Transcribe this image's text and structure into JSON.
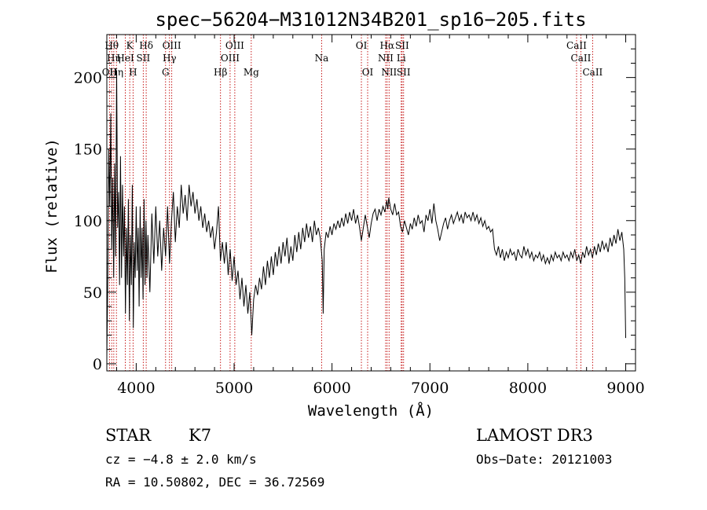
{
  "chart_data": {
    "type": "line",
    "title": "spec−56204−M31012N34B201_sp16−205.fits",
    "xlabel": "Wavelength (Å)",
    "ylabel": "Flux (relative)",
    "xlim": [
      3700,
      9100
    ],
    "ylim": [
      -5,
      230
    ],
    "xticks": [
      4000,
      5000,
      6000,
      7000,
      8000,
      9000
    ],
    "yticks": [
      0,
      50,
      100,
      150,
      200
    ],
    "spectrum": [
      [
        3700,
        5
      ],
      [
        3710,
        60
      ],
      [
        3720,
        150
      ],
      [
        3730,
        110
      ],
      [
        3740,
        175
      ],
      [
        3750,
        80
      ],
      [
        3760,
        130
      ],
      [
        3770,
        60
      ],
      [
        3780,
        140
      ],
      [
        3790,
        75
      ],
      [
        3800,
        205
      ],
      [
        3810,
        95
      ],
      [
        3820,
        120
      ],
      [
        3830,
        55
      ],
      [
        3840,
        145
      ],
      [
        3850,
        60
      ],
      [
        3860,
        125
      ],
      [
        3870,
        75
      ],
      [
        3880,
        110
      ],
      [
        3890,
        35
      ],
      [
        3900,
        95
      ],
      [
        3910,
        55
      ],
      [
        3920,
        115
      ],
      [
        3930,
        30
      ],
      [
        3940,
        90
      ],
      [
        3950,
        55
      ],
      [
        3960,
        125
      ],
      [
        3970,
        25
      ],
      [
        3980,
        85
      ],
      [
        3990,
        60
      ],
      [
        4000,
        110
      ],
      [
        4010,
        65
      ],
      [
        4020,
        95
      ],
      [
        4030,
        40
      ],
      [
        4040,
        110
      ],
      [
        4050,
        60
      ],
      [
        4060,
        95
      ],
      [
        4070,
        45
      ],
      [
        4080,
        115
      ],
      [
        4090,
        55
      ],
      [
        4100,
        100
      ],
      [
        4110,
        60
      ],
      [
        4120,
        90
      ],
      [
        4140,
        50
      ],
      [
        4160,
        105
      ],
      [
        4180,
        70
      ],
      [
        4200,
        110
      ],
      [
        4220,
        75
      ],
      [
        4240,
        100
      ],
      [
        4260,
        65
      ],
      [
        4280,
        95
      ],
      [
        4300,
        75
      ],
      [
        4320,
        110
      ],
      [
        4340,
        70
      ],
      [
        4360,
        100
      ],
      [
        4380,
        120
      ],
      [
        4400,
        85
      ],
      [
        4420,
        110
      ],
      [
        4440,
        95
      ],
      [
        4460,
        125
      ],
      [
        4480,
        105
      ],
      [
        4500,
        118
      ],
      [
        4520,
        100
      ],
      [
        4540,
        125
      ],
      [
        4560,
        110
      ],
      [
        4580,
        120
      ],
      [
        4600,
        105
      ],
      [
        4620,
        115
      ],
      [
        4640,
        100
      ],
      [
        4660,
        110
      ],
      [
        4680,
        95
      ],
      [
        4700,
        105
      ],
      [
        4720,
        92
      ],
      [
        4740,
        100
      ],
      [
        4760,
        88
      ],
      [
        4780,
        96
      ],
      [
        4800,
        80
      ],
      [
        4820,
        92
      ],
      [
        4840,
        110
      ],
      [
        4860,
        72
      ],
      [
        4880,
        85
      ],
      [
        4900,
        70
      ],
      [
        4920,
        85
      ],
      [
        4940,
        62
      ],
      [
        4960,
        80
      ],
      [
        4980,
        58
      ],
      [
        5000,
        75
      ],
      [
        5020,
        55
      ],
      [
        5040,
        65
      ],
      [
        5060,
        45
      ],
      [
        5080,
        60
      ],
      [
        5100,
        40
      ],
      [
        5120,
        55
      ],
      [
        5140,
        35
      ],
      [
        5160,
        50
      ],
      [
        5180,
        20
      ],
      [
        5200,
        45
      ],
      [
        5220,
        55
      ],
      [
        5240,
        48
      ],
      [
        5260,
        60
      ],
      [
        5280,
        52
      ],
      [
        5300,
        68
      ],
      [
        5320,
        55
      ],
      [
        5340,
        72
      ],
      [
        5360,
        60
      ],
      [
        5380,
        75
      ],
      [
        5400,
        62
      ],
      [
        5420,
        78
      ],
      [
        5440,
        68
      ],
      [
        5460,
        82
      ],
      [
        5480,
        70
      ],
      [
        5500,
        85
      ],
      [
        5520,
        75
      ],
      [
        5540,
        88
      ],
      [
        5560,
        70
      ],
      [
        5580,
        82
      ],
      [
        5600,
        72
      ],
      [
        5620,
        90
      ],
      [
        5640,
        78
      ],
      [
        5660,
        92
      ],
      [
        5680,
        80
      ],
      [
        5700,
        95
      ],
      [
        5720,
        85
      ],
      [
        5740,
        98
      ],
      [
        5760,
        88
      ],
      [
        5780,
        96
      ],
      [
        5800,
        85
      ],
      [
        5820,
        100
      ],
      [
        5840,
        90
      ],
      [
        5860,
        95
      ],
      [
        5880,
        88
      ],
      [
        5900,
        72
      ],
      [
        5910,
        35
      ],
      [
        5920,
        80
      ],
      [
        5940,
        92
      ],
      [
        5960,
        88
      ],
      [
        5980,
        96
      ],
      [
        6000,
        90
      ],
      [
        6020,
        98
      ],
      [
        6040,
        94
      ],
      [
        6060,
        100
      ],
      [
        6080,
        95
      ],
      [
        6100,
        102
      ],
      [
        6120,
        96
      ],
      [
        6140,
        105
      ],
      [
        6160,
        98
      ],
      [
        6180,
        106
      ],
      [
        6200,
        100
      ],
      [
        6220,
        108
      ],
      [
        6240,
        98
      ],
      [
        6260,
        104
      ],
      [
        6280,
        96
      ],
      [
        6300,
        86
      ],
      [
        6320,
        95
      ],
      [
        6340,
        104
      ],
      [
        6360,
        96
      ],
      [
        6380,
        88
      ],
      [
        6400,
        98
      ],
      [
        6420,
        105
      ],
      [
        6440,
        108
      ],
      [
        6460,
        100
      ],
      [
        6480,
        108
      ],
      [
        6500,
        104
      ],
      [
        6520,
        110
      ],
      [
        6540,
        106
      ],
      [
        6560,
        114
      ],
      [
        6570,
        108
      ],
      [
        6580,
        116
      ],
      [
        6600,
        108
      ],
      [
        6620,
        104
      ],
      [
        6640,
        112
      ],
      [
        6660,
        104
      ],
      [
        6680,
        106
      ],
      [
        6700,
        96
      ],
      [
        6720,
        92
      ],
      [
        6740,
        100
      ],
      [
        6760,
        95
      ],
      [
        6780,
        90
      ],
      [
        6800,
        98
      ],
      [
        6820,
        94
      ],
      [
        6840,
        102
      ],
      [
        6860,
        96
      ],
      [
        6880,
        104
      ],
      [
        6900,
        98
      ],
      [
        6920,
        100
      ],
      [
        6940,
        92
      ],
      [
        6960,
        104
      ],
      [
        6980,
        100
      ],
      [
        7000,
        108
      ],
      [
        7020,
        98
      ],
      [
        7040,
        112
      ],
      [
        7060,
        100
      ],
      [
        7080,
        94
      ],
      [
        7100,
        86
      ],
      [
        7120,
        92
      ],
      [
        7140,
        98
      ],
      [
        7160,
        102
      ],
      [
        7180,
        94
      ],
      [
        7200,
        100
      ],
      [
        7220,
        104
      ],
      [
        7240,
        98
      ],
      [
        7260,
        102
      ],
      [
        7280,
        106
      ],
      [
        7300,
        100
      ],
      [
        7320,
        104
      ],
      [
        7340,
        98
      ],
      [
        7360,
        106
      ],
      [
        7380,
        102
      ],
      [
        7400,
        104
      ],
      [
        7420,
        100
      ],
      [
        7440,
        106
      ],
      [
        7460,
        100
      ],
      [
        7480,
        104
      ],
      [
        7500,
        98
      ],
      [
        7520,
        102
      ],
      [
        7540,
        96
      ],
      [
        7560,
        100
      ],
      [
        7580,
        94
      ],
      [
        7600,
        96
      ],
      [
        7620,
        92
      ],
      [
        7640,
        94
      ],
      [
        7660,
        80
      ],
      [
        7680,
        76
      ],
      [
        7700,
        82
      ],
      [
        7720,
        74
      ],
      [
        7740,
        80
      ],
      [
        7760,
        72
      ],
      [
        7780,
        78
      ],
      [
        7800,
        74
      ],
      [
        7820,
        80
      ],
      [
        7840,
        76
      ],
      [
        7860,
        78
      ],
      [
        7880,
        72
      ],
      [
        7900,
        80
      ],
      [
        7920,
        76
      ],
      [
        7940,
        74
      ],
      [
        7960,
        82
      ],
      [
        7980,
        76
      ],
      [
        8000,
        80
      ],
      [
        8020,
        74
      ],
      [
        8040,
        78
      ],
      [
        8060,
        72
      ],
      [
        8080,
        76
      ],
      [
        8100,
        74
      ],
      [
        8120,
        78
      ],
      [
        8140,
        72
      ],
      [
        8160,
        76
      ],
      [
        8180,
        70
      ],
      [
        8200,
        74
      ],
      [
        8220,
        70
      ],
      [
        8240,
        76
      ],
      [
        8260,
        72
      ],
      [
        8280,
        78
      ],
      [
        8300,
        74
      ],
      [
        8320,
        76
      ],
      [
        8340,
        72
      ],
      [
        8360,
        78
      ],
      [
        8380,
        74
      ],
      [
        8400,
        76
      ],
      [
        8420,
        72
      ],
      [
        8440,
        78
      ],
      [
        8460,
        74
      ],
      [
        8480,
        80
      ],
      [
        8500,
        72
      ],
      [
        8520,
        76
      ],
      [
        8540,
        70
      ],
      [
        8560,
        78
      ],
      [
        8580,
        74
      ],
      [
        8600,
        82
      ],
      [
        8620,
        76
      ],
      [
        8640,
        80
      ],
      [
        8660,
        74
      ],
      [
        8680,
        82
      ],
      [
        8700,
        76
      ],
      [
        8720,
        84
      ],
      [
        8740,
        78
      ],
      [
        8760,
        86
      ],
      [
        8780,
        80
      ],
      [
        8800,
        84
      ],
      [
        8820,
        78
      ],
      [
        8840,
        88
      ],
      [
        8860,
        82
      ],
      [
        8880,
        90
      ],
      [
        8900,
        84
      ],
      [
        8920,
        94
      ],
      [
        8940,
        86
      ],
      [
        8960,
        92
      ],
      [
        8980,
        80
      ],
      [
        8990,
        60
      ],
      [
        9000,
        18
      ]
    ],
    "lines": [
      {
        "wl": 3727,
        "label": "OII",
        "row": 3
      },
      {
        "wl": 3750,
        "label": "Hθ",
        "row": 1
      },
      {
        "wl": 3771,
        "label": "Hη",
        "row": 2
      },
      {
        "wl": 3798,
        "label": "Hη",
        "row": 3
      },
      {
        "wl": 3889,
        "label": "HeI",
        "row": 2
      },
      {
        "wl": 3934,
        "label": "K",
        "row": 1
      },
      {
        "wl": 3968,
        "label": "H",
        "row": 3
      },
      {
        "wl": 4072,
        "label": "SII",
        "row": 2
      },
      {
        "wl": 4102,
        "label": "Hδ",
        "row": 1
      },
      {
        "wl": 4300,
        "label": "G",
        "row": 3
      },
      {
        "wl": 4340,
        "label": "Hγ",
        "row": 2
      },
      {
        "wl": 4363,
        "label": "OIII",
        "row": 1
      },
      {
        "wl": 4861,
        "label": "Hβ",
        "row": 3
      },
      {
        "wl": 4959,
        "label": "OIII",
        "row": 2
      },
      {
        "wl": 5007,
        "label": "OIII",
        "row": 1
      },
      {
        "wl": 5175,
        "label": "Mg",
        "row": 3
      },
      {
        "wl": 5894,
        "label": "Na",
        "row": 2
      },
      {
        "wl": 6300,
        "label": "OI",
        "row": 1
      },
      {
        "wl": 6364,
        "label": "OI",
        "row": 3
      },
      {
        "wl": 6548,
        "label": "NII",
        "row": 2
      },
      {
        "wl": 6563,
        "label": "Hα",
        "row": 1
      },
      {
        "wl": 6583,
        "label": "NII",
        "row": 3
      },
      {
        "wl": 6707,
        "label": "Li",
        "row": 2
      },
      {
        "wl": 6716,
        "label": "SII",
        "row": 1
      },
      {
        "wl": 6731,
        "label": "SII",
        "row": 3
      },
      {
        "wl": 8498,
        "label": "CaII",
        "row": 1
      },
      {
        "wl": 8542,
        "label": "CaII",
        "row": 2
      },
      {
        "wl": 8662,
        "label": "CaII",
        "row": 3
      }
    ]
  },
  "info": {
    "object_class": "STAR",
    "subclass": "K7",
    "survey": "LAMOST DR3",
    "cz": "cz = −4.8 ± 2.0 km/s",
    "obs_date": "Obs−Date: 20121003",
    "coords": "RA =  10.50802, DEC =  36.72569"
  },
  "colors": {
    "spectrum": "#000000",
    "line_markers": "#c00000",
    "axes": "#000000"
  }
}
